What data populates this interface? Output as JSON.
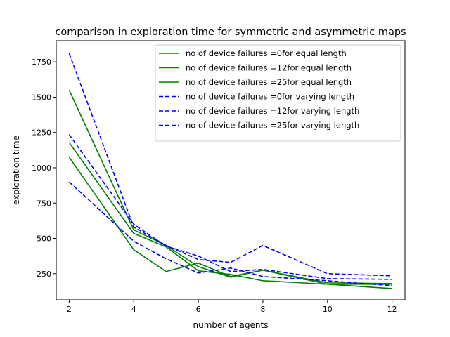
{
  "chart_data": {
    "type": "line",
    "title": "comparison in exploration time for symmetric and asymmetric maps",
    "xlabel": "number of agents",
    "ylabel": "exploration time",
    "xlim": [
      1.6,
      12.4
    ],
    "ylim": [
      65,
      1900
    ],
    "xticks": [
      2,
      4,
      6,
      8,
      10,
      12
    ],
    "yticks": [
      250,
      500,
      750,
      1000,
      1250,
      1500,
      1750
    ],
    "grid": false,
    "legend_position": "top-right",
    "series": [
      {
        "name": "no of device failures =0for equal length",
        "color": "#008000",
        "linestyle": "solid",
        "x": [
          2,
          4,
          5,
          6,
          7,
          8,
          10,
          12
        ],
        "y": [
          1075,
          420,
          265,
          325,
          230,
          275,
          175,
          175
        ]
      },
      {
        "name": "no of device failures =12for equal length",
        "color": "#008000",
        "linestyle": "solid",
        "x": [
          2,
          4,
          5,
          6,
          7,
          8,
          10,
          12
        ],
        "y": [
          1180,
          535,
          440,
          270,
          245,
          200,
          175,
          145
        ]
      },
      {
        "name": "no of device failures =25for equal length",
        "color": "#008000",
        "linestyle": "solid",
        "x": [
          2,
          4,
          5,
          6,
          7,
          8,
          10,
          12
        ],
        "y": [
          1550,
          560,
          450,
          300,
          225,
          275,
          185,
          180
        ]
      },
      {
        "name": "no of device failures =0for varying length",
        "color": "#0000ff",
        "linestyle": "dashed",
        "x": [
          2,
          4,
          5,
          6,
          7,
          8,
          10,
          12
        ],
        "y": [
          900,
          480,
          355,
          255,
          290,
          230,
          200,
          165
        ]
      },
      {
        "name": "no of device failures =12for varying length",
        "color": "#0000ff",
        "linestyle": "dashed",
        "x": [
          2,
          4,
          5,
          6,
          7,
          8,
          10,
          12
        ],
        "y": [
          1235,
          600,
          445,
          375,
          265,
          280,
          215,
          210
        ]
      },
      {
        "name": "no of device failures =25for varying length",
        "color": "#0000ff",
        "linestyle": "dashed",
        "x": [
          2,
          4,
          5,
          6,
          7,
          8,
          10,
          12
        ],
        "y": [
          1810,
          580,
          450,
          350,
          330,
          450,
          250,
          235
        ]
      }
    ]
  }
}
